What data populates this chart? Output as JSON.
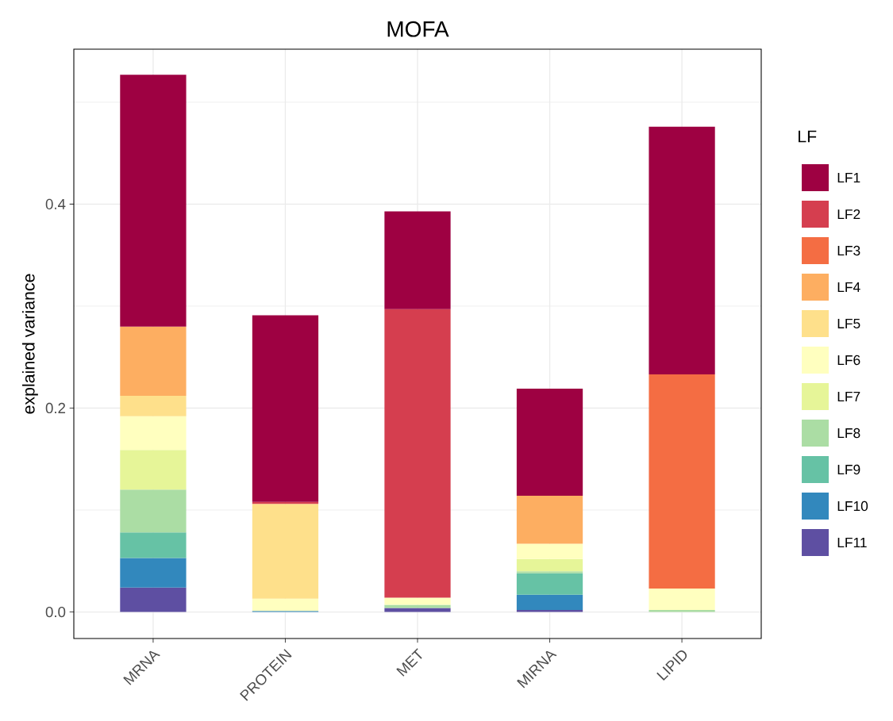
{
  "chart_data": {
    "type": "bar",
    "title": "MOFA",
    "ylabel": "explained variance",
    "legend_title": "LF",
    "stacked": true,
    "grid": true,
    "legend": "right",
    "categories": [
      "MRNA",
      "PROTEIN",
      "MET",
      "MIRNA",
      "LIPID"
    ],
    "ylim": [
      -0.026,
      0.552
    ],
    "yticks": [
      {
        "value": 0,
        "label": "0.0"
      },
      {
        "value": 0.2,
        "label": "0.2"
      },
      {
        "value": 0.4,
        "label": "0.4"
      }
    ],
    "series": [
      {
        "name": "LF11",
        "color": "#5e4fa2",
        "values": [
          0.024,
          null,
          0.004,
          0.002,
          null
        ]
      },
      {
        "name": "LF10",
        "color": "#3288bd",
        "values": [
          0.029,
          0.001,
          null,
          0.015,
          null
        ]
      },
      {
        "name": "LF9",
        "color": "#66c2a5",
        "values": [
          0.025,
          null,
          null,
          0.021,
          null
        ]
      },
      {
        "name": "LF8",
        "color": "#abdda4",
        "values": [
          0.042,
          null,
          0.003,
          0.002,
          0.002
        ]
      },
      {
        "name": "LF7",
        "color": "#e6f598",
        "values": [
          0.039,
          null,
          null,
          0.012,
          null
        ]
      },
      {
        "name": "LF6",
        "color": "#ffffbf",
        "values": [
          0.033,
          0.012,
          0.007,
          0.015,
          0.021
        ]
      },
      {
        "name": "LF5",
        "color": "#fee08b",
        "values": [
          0.02,
          0.093,
          null,
          null,
          null
        ]
      },
      {
        "name": "LF4",
        "color": "#fdae61",
        "values": [
          0.068,
          null,
          null,
          0.047,
          null
        ]
      },
      {
        "name": "LF3",
        "color": "#f46d43",
        "values": [
          null,
          null,
          null,
          null,
          0.21
        ]
      },
      {
        "name": "LF2",
        "color": "#d53e4f",
        "values": [
          null,
          0.002,
          0.283,
          null,
          null
        ]
      },
      {
        "name": "LF1",
        "color": "#9e0142",
        "values": [
          0.247,
          0.183,
          0.096,
          0.105,
          0.243
        ]
      }
    ]
  }
}
